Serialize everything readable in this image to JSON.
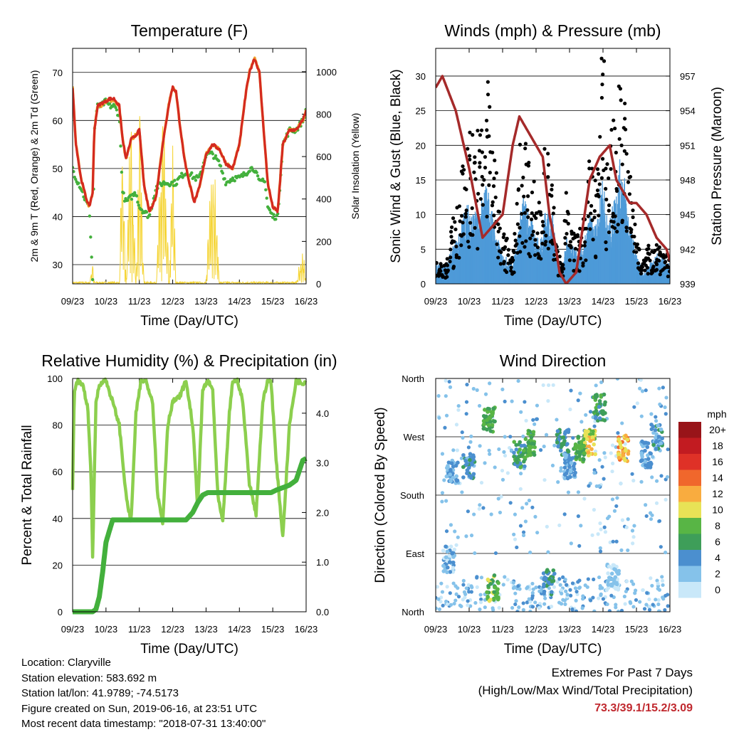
{
  "x_ticks": [
    "09/23",
    "10/23",
    "11/23",
    "12/23",
    "13/23",
    "14/23",
    "15/23",
    "16/23"
  ],
  "chart_data": [
    {
      "type": "line",
      "title": "Temperature (F)",
      "xlabel": "Time (Day/UTC)",
      "ylabel": "2m & 9m T (Red, Orange) & 2m Td (Green)",
      "ylabel_right": "Solar Insolation (Yellow)",
      "ylim": [
        26,
        75
      ],
      "y2lim": [
        0,
        1110
      ],
      "yticks": [
        30,
        40,
        50,
        60,
        70
      ],
      "y2ticks": [
        "0",
        "200",
        "400",
        "600",
        "800",
        "1000"
      ],
      "x": [
        0,
        0.1,
        0.25,
        0.4,
        0.5,
        0.6,
        0.65,
        0.75,
        0.85,
        1.0,
        1.1,
        1.25,
        1.4,
        1.5,
        1.6,
        1.75,
        1.9,
        2.0,
        2.15,
        2.3,
        2.5,
        2.7,
        2.9,
        3.0,
        3.1,
        3.2,
        3.35,
        3.5,
        3.65,
        3.8,
        4.0,
        4.2,
        4.4,
        4.6,
        4.8,
        5.0,
        5.2,
        5.3,
        5.45,
        5.6,
        5.75,
        5.85,
        6.0,
        6.15,
        6.3,
        6.5,
        6.7,
        6.9,
        7.0
      ],
      "series": [
        {
          "name": "T2m",
          "color": "#d42a20",
          "values": [
            67,
            55,
            48,
            44,
            42,
            45,
            58,
            63,
            63.5,
            64,
            64.5,
            64.5,
            63,
            56,
            52,
            56,
            57,
            58,
            46,
            41,
            44,
            55,
            64,
            67,
            66,
            60,
            52,
            47,
            43,
            46,
            53,
            55,
            54,
            51,
            50,
            55,
            66,
            70,
            73,
            70,
            56,
            47,
            42,
            41,
            55,
            58,
            58,
            60,
            62
          ]
        },
        {
          "name": "T9m",
          "color": "#f0a030",
          "values": [
            67,
            55,
            48,
            44,
            42,
            45,
            58,
            63,
            63,
            64,
            64,
            64,
            63,
            56,
            52,
            56,
            57,
            58,
            46,
            41,
            44,
            55,
            64,
            67,
            66,
            60,
            52,
            47,
            43,
            46,
            53,
            55,
            54,
            51,
            50,
            55,
            66,
            70,
            73,
            70,
            56,
            47,
            42,
            41,
            55,
            58,
            58,
            60,
            62
          ]
        },
        {
          "name": "Td2m",
          "color": "#43b03c",
          "values": [
            50,
            48,
            46,
            43,
            42,
            27,
            58,
            63,
            63,
            64,
            63,
            63,
            61,
            45,
            43,
            44,
            45,
            42,
            41,
            40,
            46,
            47,
            47,
            47,
            47,
            48,
            49,
            49,
            48,
            48,
            53,
            53,
            51,
            47,
            48,
            48,
            49,
            50,
            50,
            47,
            48,
            42,
            40,
            40,
            55,
            58,
            58,
            60,
            62
          ]
        },
        {
          "name": "Solar",
          "color": "#f5d432",
          "values": [
            0,
            0,
            0,
            0,
            0,
            140,
            0,
            0,
            0,
            0,
            0,
            0,
            0,
            950,
            0,
            950,
            0,
            950,
            0,
            0,
            0,
            950,
            0,
            880,
            0,
            0,
            0,
            0,
            0,
            0,
            0,
            850,
            0,
            0,
            0,
            0,
            0,
            0,
            0,
            0,
            0,
            0,
            0,
            0,
            0,
            0,
            0,
            200,
            0
          ]
        }
      ]
    },
    {
      "type": "scatter",
      "title": "Winds (mph) & Pressure (mb)",
      "xlabel": "Time (Day/UTC)",
      "ylabel": "Sonic Wind & Gust (Blue, Black)",
      "ylabel_right": "Station Pressure (Maroon)",
      "ylim": [
        0,
        34
      ],
      "y2lim": [
        939,
        959.4
      ],
      "yticks": [
        0,
        5,
        10,
        15,
        20,
        25,
        30
      ],
      "y2ticks": [
        "939",
        "942",
        "945",
        "948",
        "951",
        "954",
        "957"
      ],
      "series": [
        {
          "name": "Gust",
          "color": "#000000",
          "x": [
            0.3,
            0.7,
            0.9,
            1.3,
            1.5,
            1.6,
            1.7,
            1.8,
            2.0,
            2.3,
            2.5,
            2.6,
            2.8,
            3.1,
            3.3,
            3.5,
            3.6,
            3.8,
            3.9,
            4.0,
            4.3,
            4.5,
            4.6,
            4.7,
            4.8,
            4.9,
            5.0,
            5.1,
            5.2,
            5.3,
            5.5,
            5.6,
            5.8,
            6.0,
            6.2,
            6.4,
            6.6,
            6.8,
            6.9
          ],
          "values": [
            3,
            12,
            20,
            20,
            25,
            29,
            22,
            14,
            8,
            3,
            14,
            22,
            16,
            10,
            18,
            12,
            5,
            3,
            13,
            8,
            6,
            12,
            18,
            14,
            15,
            22,
            32,
            16,
            22,
            20,
            26,
            27,
            15,
            8,
            3,
            5,
            6,
            5,
            4
          ]
        },
        {
          "name": "Wind",
          "color": "#4e9ad8",
          "x": [
            0.3,
            0.7,
            0.9,
            1.3,
            1.5,
            1.6,
            1.7,
            1.8,
            2.0,
            2.3,
            2.5,
            2.6,
            2.8,
            3.1,
            3.3,
            3.5,
            3.6,
            3.8,
            3.9,
            4.0,
            4.3,
            4.5,
            4.6,
            4.7,
            4.8,
            4.9,
            5.0,
            5.1,
            5.2,
            5.3,
            5.5,
            5.6,
            5.8,
            6.0,
            6.2,
            6.4,
            6.6,
            6.8,
            6.9
          ],
          "values": [
            2,
            5,
            8,
            7,
            10,
            9,
            7,
            5,
            3,
            2,
            6,
            9,
            7,
            4,
            8,
            7,
            3,
            1,
            5,
            4,
            3,
            5,
            7,
            6,
            6,
            9,
            11,
            7,
            6,
            8,
            12,
            12,
            6,
            3,
            1,
            2,
            3,
            3,
            2
          ]
        },
        {
          "name": "Pressure",
          "color": "#a52a2a",
          "x": [
            0,
            0.2,
            0.6,
            1.0,
            1.4,
            2.0,
            2.3,
            2.5,
            2.8,
            3.0,
            3.2,
            3.4,
            3.6,
            3.7,
            3.9,
            4.2,
            4.4,
            4.6,
            4.9,
            5.2,
            5.4,
            5.6,
            5.8,
            6.0,
            6.3,
            6.6,
            6.9,
            7.0
          ],
          "values": [
            956,
            957,
            954,
            949,
            943,
            945,
            951,
            953.5,
            952,
            951,
            950,
            945,
            942,
            940,
            939,
            940,
            944,
            948,
            950,
            951,
            948,
            947,
            946,
            946,
            945,
            943,
            942,
            941
          ]
        }
      ]
    },
    {
      "type": "line",
      "title": "Relative Humidity (%) & Precipitation (in)",
      "xlabel": "Time (Day/UTC)",
      "ylabel": "Percent & Total Rainfall",
      "ylim": [
        0,
        100
      ],
      "y2lim": [
        0,
        4.7
      ],
      "yticks": [
        0,
        20,
        40,
        60,
        80,
        100
      ],
      "y2ticks": [
        "0.0",
        "1.0",
        "2.0",
        "3.0",
        "4.0"
      ],
      "x": [
        0,
        0.05,
        0.15,
        0.3,
        0.45,
        0.55,
        0.6,
        0.7,
        0.8,
        0.9,
        1.0,
        1.2,
        1.4,
        1.6,
        1.75,
        1.9,
        2.05,
        2.2,
        2.4,
        2.55,
        2.7,
        2.85,
        3.0,
        3.2,
        3.4,
        3.6,
        3.75,
        3.9,
        4.05,
        4.2,
        4.35,
        4.5,
        4.7,
        4.8,
        4.95,
        5.1,
        5.3,
        5.5,
        5.7,
        5.85,
        5.95,
        6.1,
        6.3,
        6.5,
        6.7,
        6.9,
        7.0
      ],
      "series": [
        {
          "name": "RH",
          "color": "#8ccf4e",
          "values": [
            52,
            95,
            99,
            97,
            88,
            60,
            24,
            90,
            97,
            99,
            99,
            90,
            80,
            50,
            38,
            85,
            99,
            99,
            90,
            50,
            38,
            80,
            90,
            92,
            99,
            80,
            45,
            95,
            99,
            95,
            50,
            38,
            85,
            99,
            99,
            90,
            55,
            42,
            90,
            99,
            99,
            65,
            32,
            80,
            99,
            98,
            99
          ]
        },
        {
          "name": "Rain",
          "color": "#43b03c",
          "values": [
            0,
            0,
            0,
            0,
            0,
            0,
            0,
            0.05,
            0.3,
            0.8,
            1.4,
            1.85,
            1.85,
            1.85,
            1.85,
            1.85,
            1.85,
            1.85,
            1.85,
            1.85,
            1.85,
            1.85,
            1.85,
            1.85,
            1.85,
            2.0,
            2.2,
            2.35,
            2.4,
            2.4,
            2.4,
            2.4,
            2.4,
            2.4,
            2.4,
            2.4,
            2.4,
            2.4,
            2.4,
            2.4,
            2.4,
            2.45,
            2.5,
            2.55,
            2.65,
            3.05,
            3.09
          ]
        }
      ]
    },
    {
      "type": "scatter",
      "title": "Wind Direction",
      "xlabel": "Time (Day/UTC)",
      "ylabel": "Direction (Colored By Speed)",
      "yticks": [
        "North",
        "East",
        "South",
        "West",
        "North"
      ],
      "colorbar_title": "mph",
      "colorbar_labels": [
        "0",
        "2",
        "4",
        "6",
        "8",
        "10",
        "12",
        "14",
        "16",
        "18",
        "20+"
      ],
      "colorbar_colors": [
        "#c9e8f9",
        "#85c2ea",
        "#4b8fcf",
        "#3e9e59",
        "#58b545",
        "#e8e256",
        "#f9ac3f",
        "#f0672c",
        "#df3127",
        "#c21b21",
        "#981419"
      ],
      "clusters": [
        {
          "x": 0.4,
          "dir": 0.9,
          "spd": 2
        },
        {
          "x": 0.5,
          "dir": 2.4,
          "spd": 3
        },
        {
          "x": 1.0,
          "dir": 2.5,
          "spd": 4
        },
        {
          "x": 1.6,
          "dir": 3.3,
          "spd": 7
        },
        {
          "x": 1.7,
          "dir": 0.4,
          "spd": 8
        },
        {
          "x": 2.5,
          "dir": 2.7,
          "spd": 6
        },
        {
          "x": 2.8,
          "dir": 2.9,
          "spd": 7
        },
        {
          "x": 3.4,
          "dir": 0.5,
          "spd": 5
        },
        {
          "x": 3.8,
          "dir": 2.9,
          "spd": 5
        },
        {
          "x": 4.0,
          "dir": 2.5,
          "spd": 3
        },
        {
          "x": 4.3,
          "dir": 2.8,
          "spd": 7
        },
        {
          "x": 4.6,
          "dir": 2.9,
          "spd": 10
        },
        {
          "x": 4.9,
          "dir": 3.5,
          "spd": 6
        },
        {
          "x": 5.3,
          "dir": 0.6,
          "spd": 1
        },
        {
          "x": 5.6,
          "dir": 2.8,
          "spd": 12
        },
        {
          "x": 6.3,
          "dir": 2.7,
          "spd": 3
        },
        {
          "x": 6.6,
          "dir": 3.0,
          "spd": 4
        }
      ]
    }
  ],
  "info": {
    "location": "Location: Claryville",
    "elevation": "Station elevation: 583.692 m",
    "latlon": "Station lat/lon: 41.9789; -74.5173",
    "created": "Figure created on Sun, 2019-06-16, at 23:51 UTC",
    "recent": "Most recent data timestamp: \"2018-07-31 13:40:00\""
  },
  "extremes": {
    "line1": "Extremes For Past 7 Days",
    "line2": "(High/Low/Max Wind/Total Precipitation)",
    "values": "73.3/39.1/15.2/3.09"
  }
}
